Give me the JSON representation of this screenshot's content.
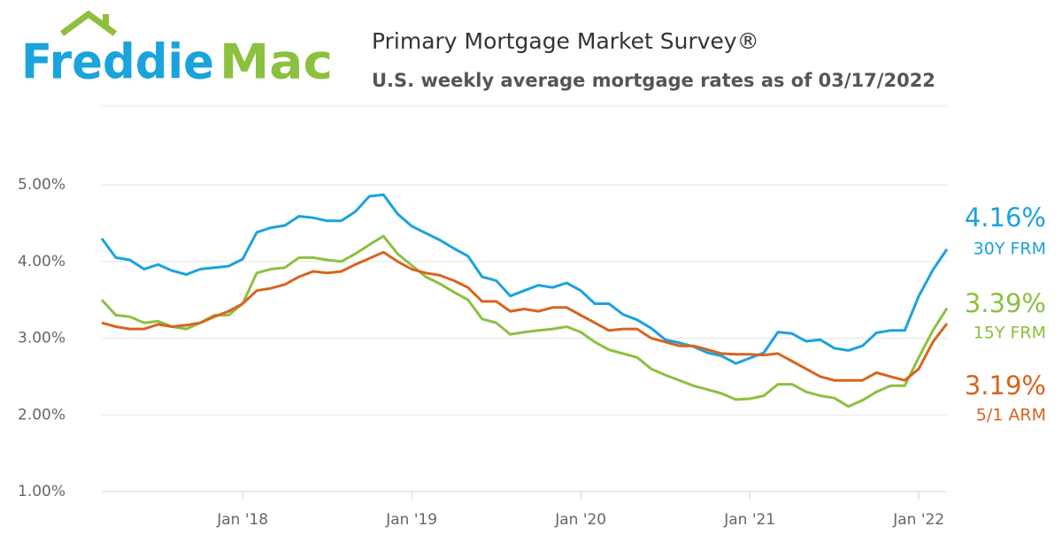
{
  "logo": [
    "Freddie",
    "Mac"
  ],
  "chart_data": {
    "type": "line",
    "title": "Primary Mortgage Market Survey®",
    "subtitle": "U.S. weekly average mortgage rates as of 03/17/2022",
    "x": [
      "2017-03",
      "2017-04",
      "2017-05",
      "2017-06",
      "2017-07",
      "2017-08",
      "2017-09",
      "2017-10",
      "2017-11",
      "2017-12",
      "2018-01",
      "2018-02",
      "2018-03",
      "2018-04",
      "2018-05",
      "2018-06",
      "2018-07",
      "2018-08",
      "2018-09",
      "2018-10",
      "2018-11",
      "2018-12",
      "2019-01",
      "2019-02",
      "2019-03",
      "2019-04",
      "2019-05",
      "2019-06",
      "2019-07",
      "2019-08",
      "2019-09",
      "2019-10",
      "2019-11",
      "2019-12",
      "2020-01",
      "2020-02",
      "2020-03",
      "2020-04",
      "2020-05",
      "2020-06",
      "2020-07",
      "2020-08",
      "2020-09",
      "2020-10",
      "2020-11",
      "2020-12",
      "2021-01",
      "2021-02",
      "2021-03",
      "2021-04",
      "2021-05",
      "2021-06",
      "2021-07",
      "2021-08",
      "2021-09",
      "2021-10",
      "2021-11",
      "2021-12",
      "2022-01",
      "2022-02",
      "2022-03"
    ],
    "xlim": [
      "2017-03",
      "2022-03"
    ],
    "xticks": [
      {
        "value": "2018-01",
        "label": "Jan '18"
      },
      {
        "value": "2019-01",
        "label": "Jan '19"
      },
      {
        "value": "2020-01",
        "label": "Jan '20"
      },
      {
        "value": "2021-01",
        "label": "Jan '21"
      },
      {
        "value": "2022-01",
        "label": "Jan '22"
      }
    ],
    "ylim": [
      1,
      5
    ],
    "yticks": [
      {
        "value": 1,
        "label": "1.00%"
      },
      {
        "value": 2,
        "label": "2.00%"
      },
      {
        "value": 3,
        "label": "3.00%"
      },
      {
        "value": 4,
        "label": "4.00%"
      },
      {
        "value": 5,
        "label": "5.00%"
      }
    ],
    "grid": true,
    "series": [
      {
        "name": "30Y FRM",
        "color": "#1aa3dd",
        "values": [
          4.3,
          4.05,
          4.02,
          3.9,
          3.96,
          3.88,
          3.83,
          3.9,
          3.92,
          3.94,
          4.03,
          4.38,
          4.44,
          4.47,
          4.59,
          4.57,
          4.53,
          4.53,
          4.65,
          4.85,
          4.87,
          4.62,
          4.46,
          4.37,
          4.28,
          4.17,
          4.07,
          3.8,
          3.75,
          3.55,
          3.62,
          3.69,
          3.66,
          3.72,
          3.62,
          3.45,
          3.45,
          3.31,
          3.24,
          3.13,
          2.98,
          2.94,
          2.89,
          2.81,
          2.77,
          2.67,
          2.74,
          2.81,
          3.08,
          3.06,
          2.96,
          2.98,
          2.87,
          2.84,
          2.9,
          3.07,
          3.1,
          3.1,
          3.55,
          3.89,
          4.16
        ],
        "value_labels": [
          null,
          null,
          null,
          null,
          null,
          null,
          null,
          null,
          null,
          null,
          null,
          null,
          null,
          null,
          null,
          null,
          null,
          null,
          null,
          null,
          null,
          null,
          null,
          null,
          null,
          null,
          null,
          null,
          null,
          null,
          null,
          null,
          null,
          null,
          null,
          null,
          null,
          null,
          null,
          null,
          null,
          null,
          null,
          null,
          null,
          null,
          null,
          null,
          null,
          null,
          null,
          null,
          null,
          null,
          null,
          null,
          null,
          null,
          null,
          null,
          "4.16%"
        ]
      },
      {
        "name": "15Y FRM",
        "color": "#8cc03f",
        "values": [
          3.5,
          3.3,
          3.28,
          3.2,
          3.22,
          3.15,
          3.12,
          3.2,
          3.3,
          3.3,
          3.45,
          3.85,
          3.9,
          3.92,
          4.05,
          4.05,
          4.02,
          4.0,
          4.1,
          4.22,
          4.33,
          4.1,
          3.95,
          3.8,
          3.71,
          3.6,
          3.5,
          3.25,
          3.2,
          3.05,
          3.08,
          3.1,
          3.12,
          3.15,
          3.08,
          2.95,
          2.85,
          2.8,
          2.75,
          2.6,
          2.52,
          2.45,
          2.38,
          2.33,
          2.28,
          2.2,
          2.21,
          2.25,
          2.4,
          2.4,
          2.3,
          2.25,
          2.22,
          2.11,
          2.19,
          2.3,
          2.38,
          2.38,
          2.75,
          3.1,
          3.39
        ],
        "value_labels": [
          null,
          null,
          null,
          null,
          null,
          null,
          null,
          null,
          null,
          null,
          null,
          null,
          null,
          null,
          null,
          null,
          null,
          null,
          null,
          null,
          null,
          null,
          null,
          null,
          null,
          null,
          null,
          null,
          null,
          null,
          null,
          null,
          null,
          null,
          null,
          null,
          null,
          null,
          null,
          null,
          null,
          null,
          null,
          null,
          null,
          null,
          null,
          null,
          null,
          null,
          null,
          null,
          null,
          null,
          null,
          null,
          null,
          null,
          null,
          null,
          "3.39%"
        ]
      },
      {
        "name": "5/1 ARM",
        "color": "#d8641f",
        "values": [
          3.2,
          3.15,
          3.12,
          3.12,
          3.18,
          3.15,
          3.17,
          3.2,
          3.28,
          3.35,
          3.45,
          3.62,
          3.65,
          3.7,
          3.8,
          3.87,
          3.85,
          3.87,
          3.96,
          4.04,
          4.12,
          4.0,
          3.9,
          3.85,
          3.82,
          3.75,
          3.66,
          3.48,
          3.48,
          3.35,
          3.38,
          3.35,
          3.4,
          3.4,
          3.3,
          3.2,
          3.1,
          3.12,
          3.12,
          3.0,
          2.95,
          2.9,
          2.9,
          2.85,
          2.8,
          2.79,
          2.79,
          2.78,
          2.8,
          2.7,
          2.6,
          2.5,
          2.45,
          2.45,
          2.45,
          2.55,
          2.5,
          2.45,
          2.6,
          2.95,
          3.19
        ],
        "value_labels": [
          null,
          null,
          null,
          null,
          null,
          null,
          null,
          null,
          null,
          null,
          null,
          null,
          null,
          null,
          null,
          null,
          null,
          null,
          null,
          null,
          null,
          null,
          null,
          null,
          null,
          null,
          null,
          null,
          null,
          null,
          null,
          null,
          null,
          null,
          null,
          null,
          null,
          null,
          null,
          null,
          null,
          null,
          null,
          null,
          null,
          null,
          null,
          null,
          null,
          null,
          null,
          null,
          null,
          null,
          null,
          null,
          null,
          null,
          null,
          null,
          "3.19%"
        ]
      }
    ]
  }
}
